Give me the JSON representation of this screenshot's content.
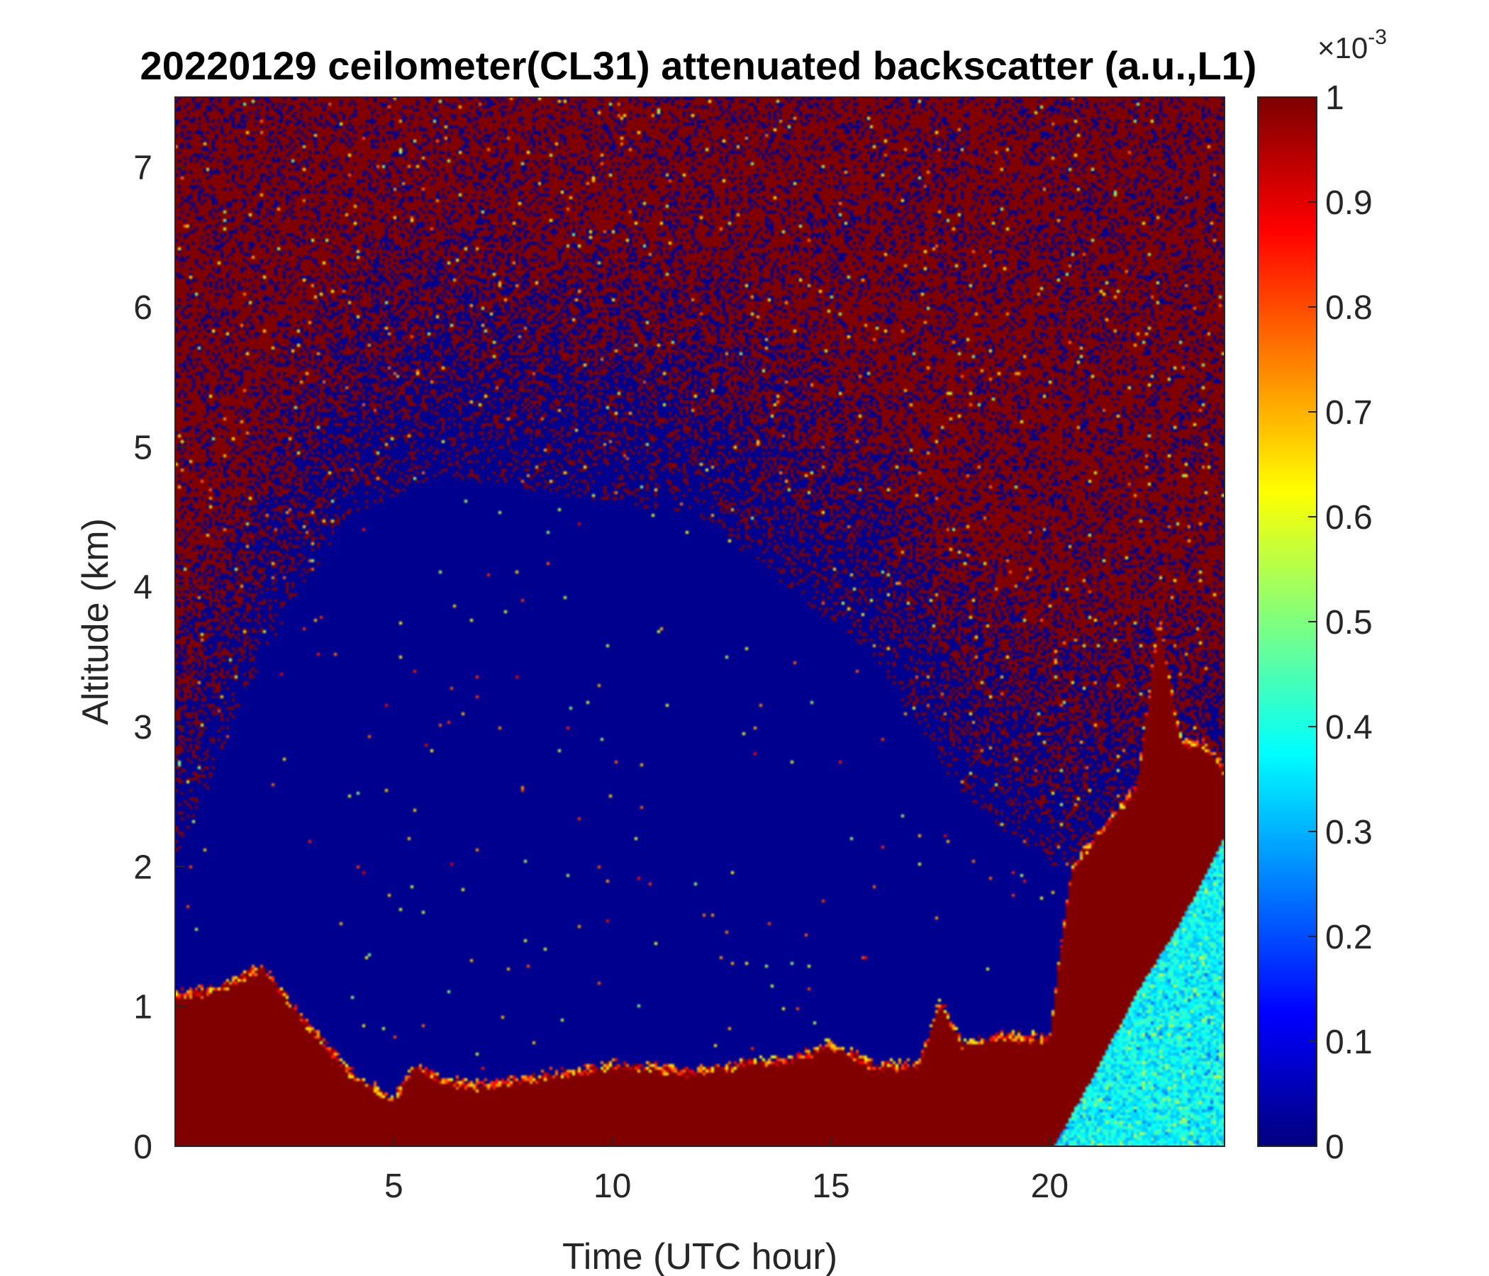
{
  "chart_data": {
    "type": "heatmap",
    "title": "20220129 ceilometer(CL31) attenuated backscatter (a.u.,L1)",
    "xlabel": "Time (UTC hour)",
    "ylabel": "Altitude (km)",
    "xlim": [
      0,
      24
    ],
    "ylim": [
      0,
      7.5
    ],
    "x_ticks": [
      5,
      10,
      15,
      20
    ],
    "y_ticks": [
      0,
      1,
      2,
      3,
      4,
      5,
      6,
      7
    ],
    "colorbar": {
      "colormap": "jet",
      "range": [
        0,
        1
      ],
      "exponent_label": "×10",
      "exponent_sup": "-3",
      "ticks": [
        0,
        0.1,
        0.2,
        0.3,
        0.4,
        0.5,
        0.6,
        0.7,
        0.8,
        0.9,
        1
      ],
      "tick_labels": [
        "0",
        "0.1",
        "0.2",
        "0.3",
        "0.4",
        "0.5",
        "0.6",
        "0.7",
        "0.8",
        "0.9",
        "1"
      ]
    },
    "colors": {
      "low": "#00008f",
      "high": "#800000",
      "accent_cyan": "#30e0f0"
    },
    "features": {
      "boundary_layer_top_km": [
        [
          0,
          1.1
        ],
        [
          1,
          1.15
        ],
        [
          2,
          1.3
        ],
        [
          3,
          0.9
        ],
        [
          4,
          0.55
        ],
        [
          4.5,
          0.45
        ],
        [
          5,
          0.35
        ],
        [
          5.5,
          0.6
        ],
        [
          6,
          0.5
        ],
        [
          7,
          0.45
        ],
        [
          8,
          0.5
        ],
        [
          9,
          0.55
        ],
        [
          10,
          0.6
        ],
        [
          11,
          0.58
        ],
        [
          12,
          0.55
        ],
        [
          13,
          0.62
        ],
        [
          14,
          0.62
        ],
        [
          15,
          0.75
        ],
        [
          16,
          0.6
        ],
        [
          17,
          0.6
        ],
        [
          17.5,
          1.05
        ],
        [
          18,
          0.75
        ],
        [
          19,
          0.8
        ],
        [
          20,
          0.8
        ],
        [
          20.5,
          2.0
        ],
        [
          21,
          2.2
        ],
        [
          22,
          2.6
        ],
        [
          22.5,
          3.8
        ],
        [
          23,
          2.9
        ],
        [
          23.5,
          2.9
        ],
        [
          24,
          2.7
        ]
      ],
      "lower_clear_wedge_km": [
        [
          20.1,
          0
        ],
        [
          21,
          0.5
        ],
        [
          22,
          1.1
        ],
        [
          23,
          1.6
        ],
        [
          24,
          2.2
        ]
      ],
      "noise_dense_above_km": [
        [
          0,
          2.0
        ],
        [
          2,
          3.5
        ],
        [
          4,
          4.5
        ],
        [
          6,
          4.8
        ],
        [
          8,
          4.7
        ],
        [
          10,
          4.6
        ],
        [
          12,
          4.5
        ],
        [
          14,
          4.0
        ],
        [
          16,
          3.5
        ],
        [
          18,
          2.5
        ],
        [
          20,
          2.0
        ],
        [
          24,
          2.0
        ]
      ]
    }
  }
}
